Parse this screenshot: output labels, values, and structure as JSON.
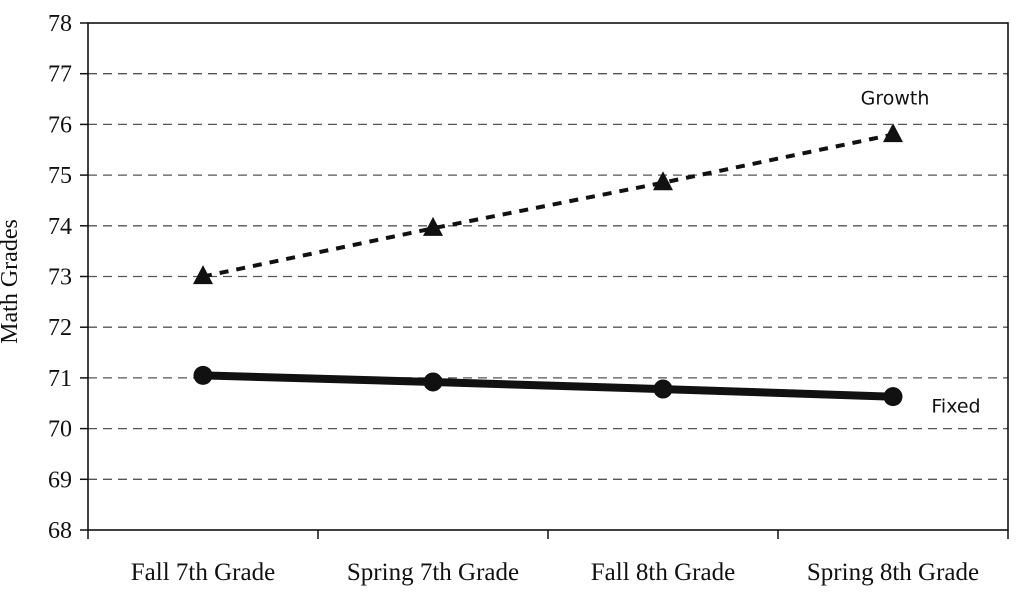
{
  "chart_data": {
    "type": "line",
    "categories": [
      "Fall 7th Grade",
      "Spring 7th Grade",
      "Fall 8th Grade",
      "Spring 8th Grade"
    ],
    "series": [
      {
        "name": "Growth",
        "values": [
          73.0,
          73.95,
          74.85,
          75.8
        ],
        "style": "dashed",
        "marker": "triangle",
        "color": "#111111"
      },
      {
        "name": "Fixed",
        "values": [
          71.05,
          70.92,
          70.78,
          70.63
        ],
        "style": "solid",
        "marker": "circle",
        "color": "#111111"
      }
    ],
    "title": "",
    "xlabel": "",
    "ylabel": "Math Grades",
    "ylim": [
      68,
      78
    ],
    "yticks": [
      68,
      69,
      70,
      71,
      72,
      73,
      74,
      75,
      76,
      77,
      78
    ],
    "grid": "horizontal dashed",
    "legend": "inline series labels at right end of each line"
  }
}
